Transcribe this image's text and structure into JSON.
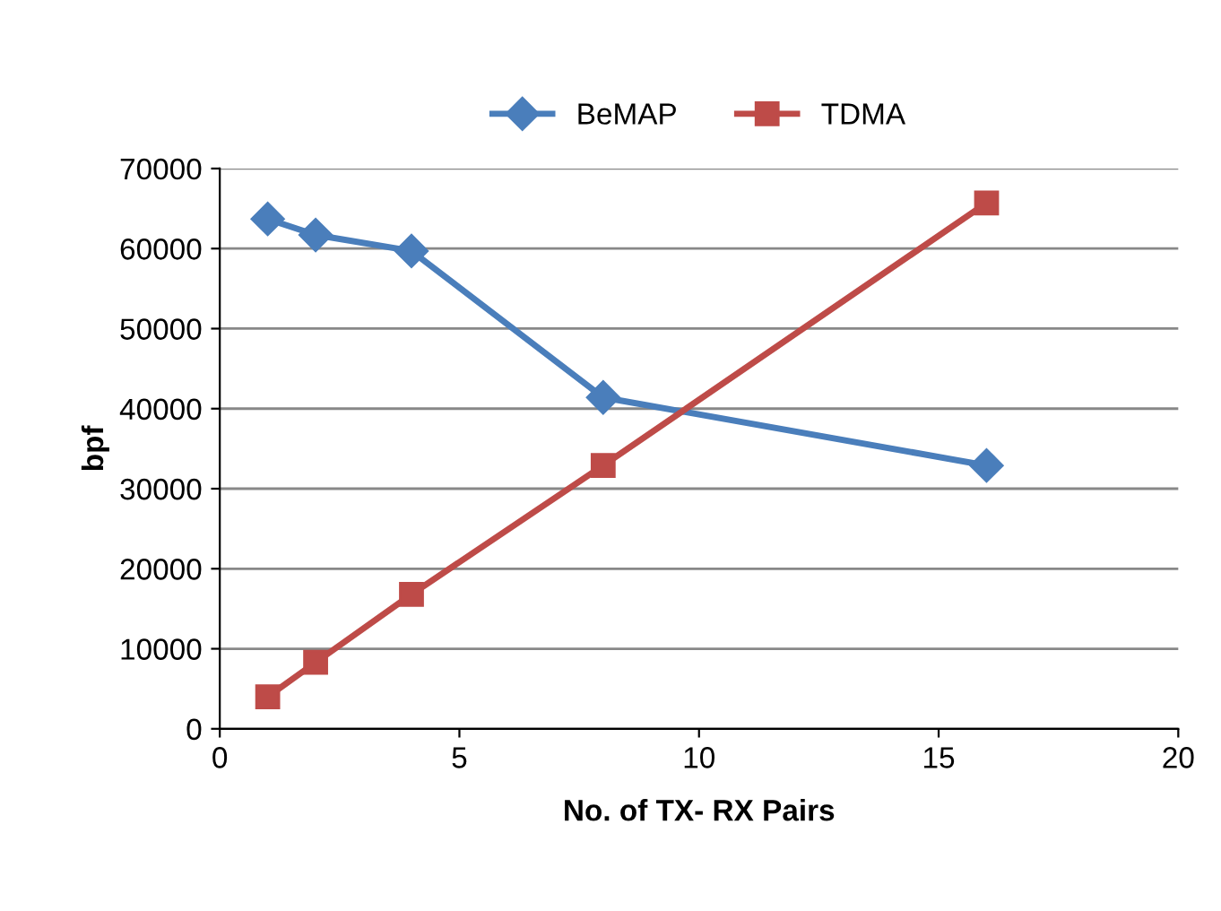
{
  "chart_data": {
    "type": "line",
    "xlabel": "No. of TX- RX Pairs",
    "ylabel": "bpf",
    "x": [
      1,
      2,
      4,
      8,
      16
    ],
    "series": [
      {
        "name": "BeMAP",
        "color": "#4a7ebb",
        "marker": "diamond",
        "values": [
          63700,
          61700,
          59700,
          41400,
          32900
        ]
      },
      {
        "name": "TDMA",
        "color": "#be4b48",
        "marker": "square",
        "values": [
          4000,
          8300,
          16800,
          32900,
          65700
        ]
      }
    ],
    "xlim": [
      0,
      20
    ],
    "xticks": [
      0,
      5,
      10,
      15,
      20
    ],
    "ylim": [
      0,
      70000
    ],
    "yticks": [
      0,
      10000,
      20000,
      30000,
      40000,
      50000,
      60000,
      70000
    ],
    "grid": "y",
    "legend": "top",
    "line_style": "solid"
  }
}
